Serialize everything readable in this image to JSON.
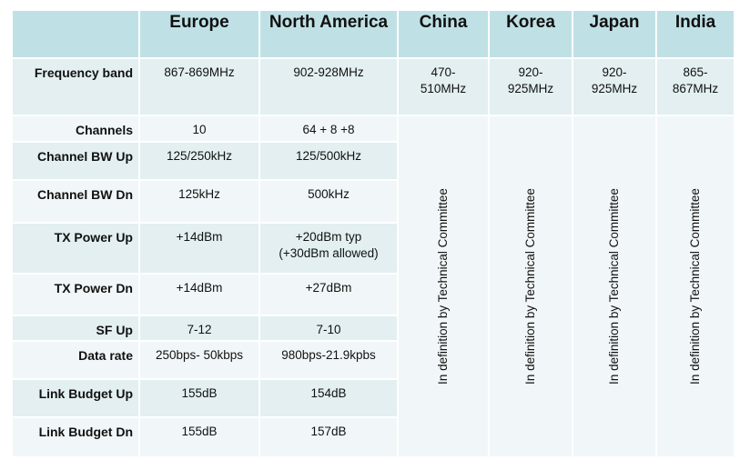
{
  "header": {
    "corner": "",
    "columns": [
      "Europe",
      "North America",
      "China",
      "Korea",
      "Japan",
      "India"
    ]
  },
  "rows": [
    {
      "label": "Frequency band",
      "europe": "867-869MHz",
      "north_america": "902-928MHz",
      "china": "470-\n510MHz",
      "korea": "920-\n925MHz",
      "japan": "920-\n925MHz",
      "india": "865-\n867MHz"
    },
    {
      "label": "Channels",
      "europe": "10",
      "north_america": "64 + 8 +8"
    },
    {
      "label": "Channel BW Up",
      "europe": "125/250kHz",
      "north_america": "125/500kHz"
    },
    {
      "label": "Channel BW Dn",
      "europe": "125kHz",
      "north_america": "500kHz"
    },
    {
      "label": "TX Power Up",
      "europe": "+14dBm",
      "north_america": "+20dBm typ\n(+30dBm allowed)"
    },
    {
      "label": "TX Power Dn",
      "europe": "+14dBm",
      "north_america": "+27dBm"
    },
    {
      "label": "SF Up",
      "europe": "7-12",
      "north_america": "7-10"
    },
    {
      "label": "Data rate",
      "europe": "250bps- 50kbps",
      "north_america": "980bps-21.9kpbs"
    },
    {
      "label": "Link Budget Up",
      "europe": "155dB",
      "north_america": "154dB"
    },
    {
      "label": "Link Budget Dn",
      "europe": "155dB",
      "north_america": "157dB"
    }
  ],
  "pending": {
    "china": "In definition by Technical Committee",
    "korea": "In definition by Technical Committee",
    "japan": "In definition by Technical Committee",
    "india": "In definition by Technical Committee"
  },
  "colors": {
    "header": "#bfe1e5",
    "row_dark": "#e3eff1",
    "row_light": "#f1f7f8"
  }
}
